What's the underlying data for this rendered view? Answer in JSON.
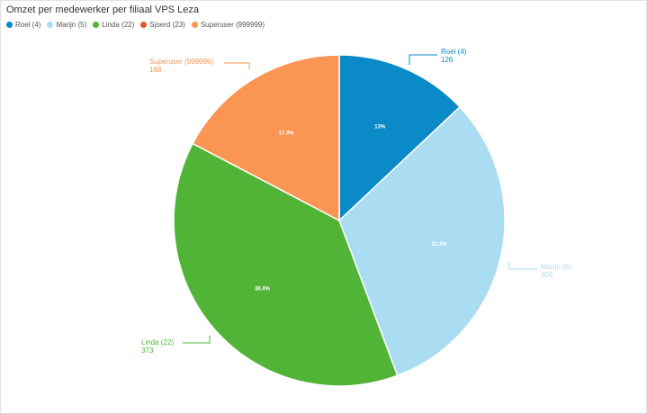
{
  "title": "Omzet per medewerker per filiaal VPS Leza",
  "chart_data": {
    "type": "pie",
    "series": [
      {
        "name": "Roel (4)",
        "value": 126,
        "percent_label": "13%",
        "color": "#0a8ac6",
        "callout_value": "126"
      },
      {
        "name": "Marijn (5)",
        "value": 304,
        "percent_label": "31.3%",
        "color": "#aadcf2",
        "callout_value": "304"
      },
      {
        "name": "Linda (22)",
        "value": 373,
        "percent_label": "38.4%",
        "color": "#51b437",
        "callout_value": "373"
      },
      {
        "name": "Sjoerd (23)",
        "value": 0,
        "percent_label": "",
        "color": "#e3572c",
        "callout_value": ""
      },
      {
        "name": "Superuser (999999)",
        "value": 168,
        "percent_label": "17.3%",
        "color": "#fb9554",
        "callout_value": "168"
      }
    ],
    "legend_position": "top-left"
  }
}
